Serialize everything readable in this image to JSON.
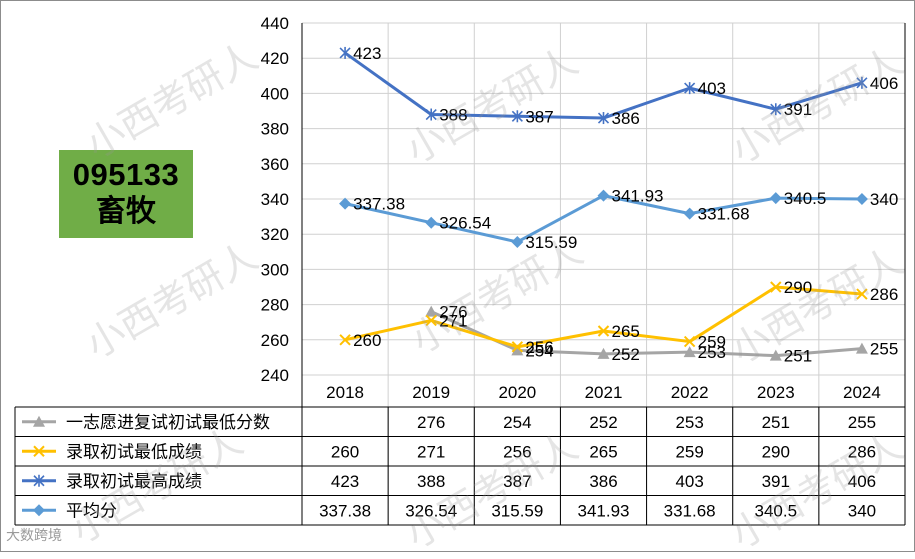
{
  "badge": {
    "code": "095133",
    "name": "畜牧"
  },
  "watermark": "小西考研人",
  "credit": "大数跨境",
  "chart_data": {
    "type": "line",
    "categories": [
      "2018",
      "2019",
      "2020",
      "2021",
      "2022",
      "2023",
      "2024"
    ],
    "ylim": [
      240,
      440
    ],
    "yticks": [
      240,
      260,
      280,
      300,
      320,
      340,
      360,
      380,
      400,
      420,
      440
    ],
    "grid": true,
    "legend": "data-table",
    "series": [
      {
        "name": "一志愿进复试初试最低分数",
        "color": "#a5a5a5",
        "marker": "triangle",
        "values": [
          null,
          276,
          254,
          252,
          253,
          251,
          255
        ],
        "labels": [
          "",
          "276",
          "254",
          "252",
          "253",
          "251",
          "255"
        ]
      },
      {
        "name": "录取初试最低成绩",
        "color": "#ffc000",
        "marker": "x",
        "values": [
          260,
          271,
          256,
          265,
          259,
          290,
          286
        ],
        "labels": [
          "260",
          "271",
          "256",
          "265",
          "259",
          "290",
          "286"
        ]
      },
      {
        "name": "录取初试最高成绩",
        "color": "#4472c4",
        "marker": "star",
        "values": [
          423,
          388,
          387,
          386,
          403,
          391,
          406
        ],
        "labels": [
          "423",
          "388",
          "387",
          "386",
          "403",
          "391",
          "406"
        ]
      },
      {
        "name": "平均分",
        "color": "#5b9bd5",
        "marker": "diamond",
        "values": [
          337.38,
          326.54,
          315.59,
          341.93,
          331.68,
          340.5,
          340
        ],
        "labels": [
          "337.38",
          "326.54",
          "315.59",
          "341.93",
          "331.68",
          "340.5",
          "340"
        ]
      }
    ]
  }
}
